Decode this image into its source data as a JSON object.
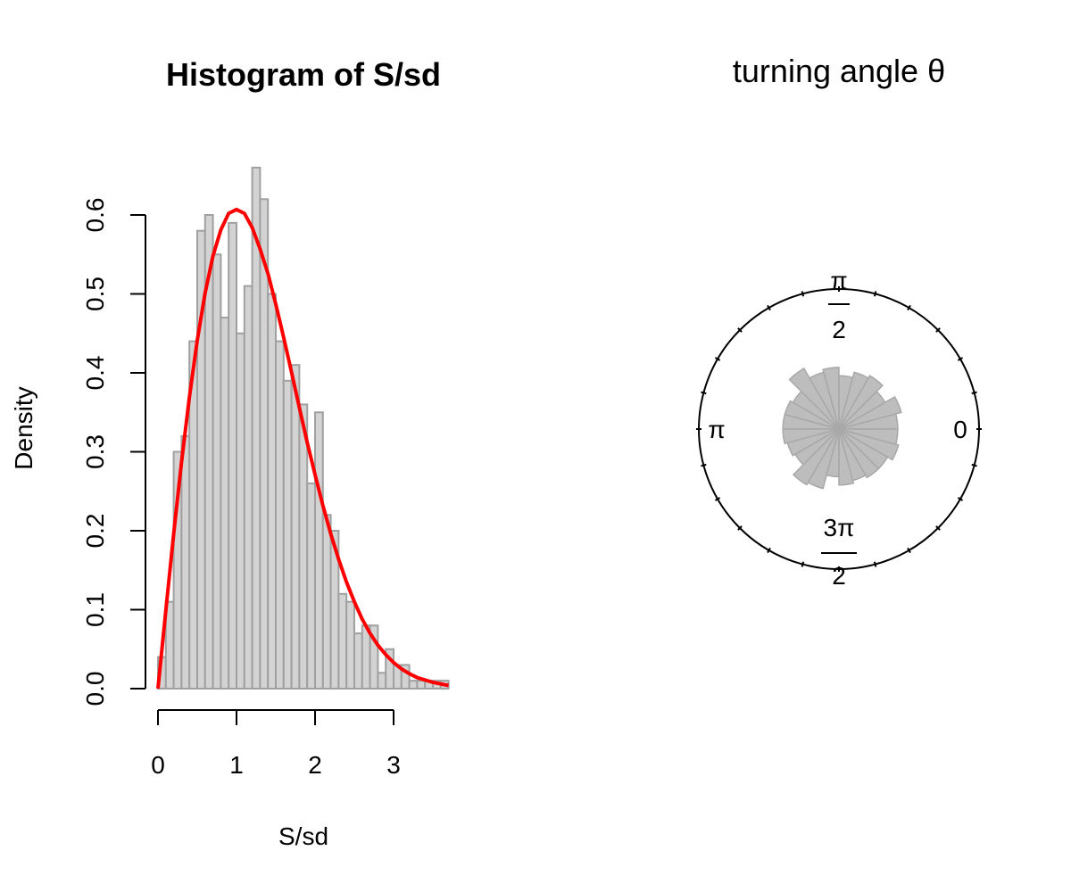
{
  "chart_data": [
    {
      "type": "bar",
      "title": "Histogram of S/sd",
      "xlabel": "S/sd",
      "ylabel": "Density",
      "xlim": [
        0,
        3.7
      ],
      "ylim": [
        0,
        0.66
      ],
      "x_ticks": [
        "0",
        "1",
        "2",
        "3"
      ],
      "y_ticks": [
        "0.0",
        "0.1",
        "0.2",
        "0.3",
        "0.4",
        "0.5",
        "0.6"
      ],
      "bin_width": 0.1,
      "bin_starts": [
        0.0,
        0.1,
        0.2,
        0.3,
        0.4,
        0.5,
        0.6,
        0.7,
        0.8,
        0.9,
        1.0,
        1.1,
        1.2,
        1.3,
        1.4,
        1.5,
        1.6,
        1.7,
        1.8,
        1.9,
        2.0,
        2.1,
        2.2,
        2.3,
        2.4,
        2.5,
        2.6,
        2.7,
        2.8,
        2.9,
        3.0,
        3.1,
        3.2,
        3.3,
        3.4,
        3.5,
        3.6
      ],
      "values": [
        0.04,
        0.11,
        0.3,
        0.32,
        0.44,
        0.58,
        0.6,
        0.55,
        0.47,
        0.59,
        0.45,
        0.51,
        0.66,
        0.62,
        0.5,
        0.44,
        0.39,
        0.41,
        0.36,
        0.26,
        0.35,
        0.22,
        0.2,
        0.12,
        0.11,
        0.07,
        0.08,
        0.08,
        0.02,
        0.05,
        0.03,
        0.03,
        0.01,
        0.01,
        0.01,
        0.01,
        0.01
      ],
      "bar_color": "#d3d3d3",
      "overlay_curve": {
        "name": "",
        "color": "#ff0000",
        "description_type": "rayleigh-density",
        "x": [
          0,
          0.1,
          0.2,
          0.3,
          0.4,
          0.5,
          0.6,
          0.7,
          0.8,
          0.9,
          1.0,
          1.1,
          1.2,
          1.3,
          1.4,
          1.5,
          1.6,
          1.7,
          1.8,
          1.9,
          2.0,
          2.1,
          2.2,
          2.3,
          2.4,
          2.5,
          2.6,
          2.7,
          2.8,
          2.9,
          3.0,
          3.1,
          3.2,
          3.3,
          3.4,
          3.5,
          3.6,
          3.7
        ],
        "y": [
          0.0,
          0.099,
          0.196,
          0.287,
          0.369,
          0.441,
          0.501,
          0.548,
          0.581,
          0.602,
          0.607,
          0.602,
          0.584,
          0.557,
          0.526,
          0.487,
          0.445,
          0.401,
          0.356,
          0.312,
          0.271,
          0.232,
          0.196,
          0.164,
          0.135,
          0.11,
          0.088,
          0.07,
          0.055,
          0.043,
          0.033,
          0.025,
          0.019,
          0.014,
          0.011,
          0.008,
          0.006,
          0.004
        ]
      },
      "grid": false
    },
    {
      "type": "rose",
      "title": "turning angle θ",
      "direction_labels": {
        "east": "0",
        "west": "π",
        "north_num": "π",
        "north_den": "2",
        "south_num": "3π",
        "south_den": "2"
      },
      "petal_count": 24,
      "petal_values_from_east_ccw": [
        0.42,
        0.46,
        0.38,
        0.44,
        0.42,
        0.38,
        0.44,
        0.42,
        0.5,
        0.38,
        0.4,
        0.4,
        0.4,
        0.38,
        0.36,
        0.46,
        0.44,
        0.34,
        0.4,
        0.38,
        0.4,
        0.4,
        0.44,
        0.42
      ],
      "petal_color": "#bdbdbd",
      "outer_tick_count": 24
    }
  ]
}
